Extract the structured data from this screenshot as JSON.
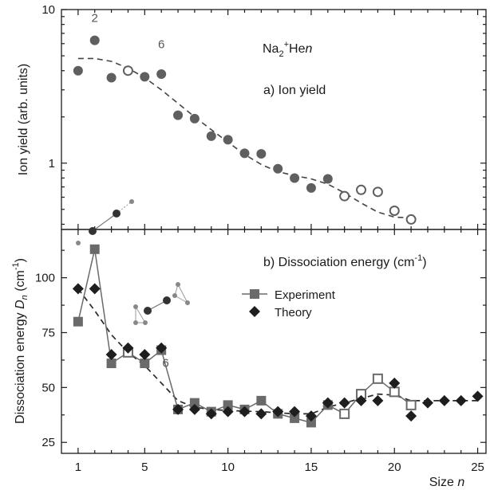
{
  "colors": {
    "filled_marker": "#5f5f5f",
    "experiment": "#6a6a6a",
    "theory": "#1e1e1e",
    "fit": "#444444",
    "axis": "#1a1a1a"
  },
  "chart_data": [
    {
      "panel": "top",
      "type": "scatter",
      "title": "a) Ion yield",
      "species": {
        "base": "Na",
        "sub1": "2",
        "sup": "+",
        "mid": "He",
        "sub2": "n"
      },
      "ylabel": "Ion yield (arb. units)",
      "yscale": "log",
      "ylim": [
        0.37,
        10
      ],
      "yticks": [
        {
          "value": 1,
          "label": "1"
        },
        {
          "value": 10,
          "label": "10"
        }
      ],
      "annotations": [
        {
          "text": "2",
          "x": 2,
          "y": 8.3
        },
        {
          "text": "6",
          "x": 6,
          "y": 5.6
        }
      ],
      "series": [
        {
          "marker": "filled-circle",
          "points": [
            {
              "x": 1,
              "y": 4.0
            },
            {
              "x": 2,
              "y": 6.3
            },
            {
              "x": 3,
              "y": 3.6
            },
            {
              "x": 5,
              "y": 3.65
            },
            {
              "x": 6,
              "y": 3.8
            },
            {
              "x": 7,
              "y": 2.05
            },
            {
              "x": 8,
              "y": 1.95
            },
            {
              "x": 9,
              "y": 1.5
            },
            {
              "x": 10,
              "y": 1.42
            },
            {
              "x": 11,
              "y": 1.16
            },
            {
              "x": 12,
              "y": 1.15
            },
            {
              "x": 13,
              "y": 0.92
            },
            {
              "x": 14,
              "y": 0.8
            },
            {
              "x": 15,
              "y": 0.69
            },
            {
              "x": 16,
              "y": 0.79
            }
          ]
        },
        {
          "marker": "open-circle",
          "points": [
            {
              "x": 4,
              "y": 4.0
            },
            {
              "x": 17,
              "y": 0.61
            },
            {
              "x": 18,
              "y": 0.67
            },
            {
              "x": 19,
              "y": 0.65
            },
            {
              "x": 20,
              "y": 0.49
            },
            {
              "x": 21,
              "y": 0.43
            }
          ]
        },
        {
          "marker": "dashed-line",
          "points": [
            {
              "x": 1,
              "y": 4.8
            },
            {
              "x": 2,
              "y": 4.8
            },
            {
              "x": 3,
              "y": 4.6
            },
            {
              "x": 4,
              "y": 4.15
            },
            {
              "x": 5,
              "y": 3.6
            },
            {
              "x": 6,
              "y": 3.0
            },
            {
              "x": 7,
              "y": 2.45
            },
            {
              "x": 8,
              "y": 2.0
            },
            {
              "x": 9,
              "y": 1.65
            },
            {
              "x": 10,
              "y": 1.37
            },
            {
              "x": 11,
              "y": 1.14
            },
            {
              "x": 12,
              "y": 0.98
            },
            {
              "x": 13,
              "y": 0.88
            },
            {
              "x": 14,
              "y": 0.83
            },
            {
              "x": 15,
              "y": 0.79
            },
            {
              "x": 16,
              "y": 0.73
            },
            {
              "x": 17,
              "y": 0.64
            },
            {
              "x": 18,
              "y": 0.55
            },
            {
              "x": 19,
              "y": 0.48
            },
            {
              "x": 20,
              "y": 0.445
            },
            {
              "x": 21,
              "y": 0.44
            }
          ]
        }
      ]
    },
    {
      "panel": "bottom",
      "type": "line",
      "title": "b) Dissociation energy (cm",
      "title_sup": "-1",
      "title_end": ")",
      "ylabel": {
        "text": "Dissociation energy ",
        "italic": "D",
        "sub": "n",
        "unit": " (cm",
        "sup": "-1",
        "end": ")"
      },
      "xlabel": {
        "text": "Size ",
        "italic": "n"
      },
      "xlim": [
        0,
        25.5
      ],
      "ylim": [
        20,
        122
      ],
      "xticks": [
        {
          "value": 1,
          "label": "1"
        },
        {
          "value": 5,
          "label": "5"
        },
        {
          "value": 10,
          "label": "10"
        },
        {
          "value": 15,
          "label": "15"
        },
        {
          "value": 20,
          "label": "20"
        },
        {
          "value": 25,
          "label": "25"
        }
      ],
      "yticks": [
        {
          "value": 25,
          "label": "25"
        },
        {
          "value": 50,
          "label": "50"
        },
        {
          "value": 75,
          "label": "75"
        },
        {
          "value": 100,
          "label": "100"
        }
      ],
      "annotations": [
        {
          "text": "6",
          "x": 5.2,
          "y": 63
        }
      ],
      "series": [
        {
          "name": "Experiment",
          "marker": "square",
          "points": [
            {
              "x": 1,
              "y": 80,
              "open": false
            },
            {
              "x": 2,
              "y": 113,
              "open": false
            },
            {
              "x": 3,
              "y": 61,
              "open": false
            },
            {
              "x": 4,
              "y": 66,
              "open": true
            },
            {
              "x": 5,
              "y": 61,
              "open": false
            },
            {
              "x": 6,
              "y": 67,
              "open": false
            },
            {
              "x": 7,
              "y": 40,
              "open": false
            },
            {
              "x": 8,
              "y": 43,
              "open": false
            },
            {
              "x": 9,
              "y": 39,
              "open": false
            },
            {
              "x": 10,
              "y": 42,
              "open": false
            },
            {
              "x": 11,
              "y": 40,
              "open": false
            },
            {
              "x": 12,
              "y": 44,
              "open": false
            },
            {
              "x": 13,
              "y": 38,
              "open": false
            },
            {
              "x": 14,
              "y": 36,
              "open": false
            },
            {
              "x": 15,
              "y": 34,
              "open": false
            },
            {
              "x": 16,
              "y": 42,
              "open": false
            },
            {
              "x": 17,
              "y": 38,
              "open": true
            },
            {
              "x": 18,
              "y": 47,
              "open": true
            },
            {
              "x": 19,
              "y": 54,
              "open": true
            },
            {
              "x": 20,
              "y": 48,
              "open": true
            },
            {
              "x": 21,
              "y": 42,
              "open": true
            }
          ]
        },
        {
          "name": "Theory",
          "marker": "diamond",
          "points": [
            {
              "x": 1,
              "y": 95
            },
            {
              "x": 2,
              "y": 95
            },
            {
              "x": 3,
              "y": 65
            },
            {
              "x": 4,
              "y": 68
            },
            {
              "x": 5,
              "y": 65
            },
            {
              "x": 6,
              "y": 68
            },
            {
              "x": 7,
              "y": 40
            },
            {
              "x": 8,
              "y": 40
            },
            {
              "x": 9,
              "y": 38
            },
            {
              "x": 10,
              "y": 39
            },
            {
              "x": 11,
              "y": 39
            },
            {
              "x": 12,
              "y": 38
            },
            {
              "x": 13,
              "y": 39
            },
            {
              "x": 14,
              "y": 39
            },
            {
              "x": 15,
              "y": 37
            },
            {
              "x": 16,
              "y": 43
            },
            {
              "x": 17,
              "y": 43
            },
            {
              "x": 18,
              "y": 44
            },
            {
              "x": 19,
              "y": 44
            },
            {
              "x": 20,
              "y": 52
            },
            {
              "x": 21,
              "y": 37
            },
            {
              "x": 22,
              "y": 43
            },
            {
              "x": 23,
              "y": 44
            },
            {
              "x": 24,
              "y": 44
            },
            {
              "x": 25,
              "y": 46
            }
          ]
        },
        {
          "marker": "dashed-line",
          "points": [
            {
              "x": 1,
              "y": 95
            },
            {
              "x": 2,
              "y": 85
            },
            {
              "x": 3,
              "y": 74
            },
            {
              "x": 4,
              "y": 66
            },
            {
              "x": 5,
              "y": 60
            },
            {
              "x": 6,
              "y": 52
            },
            {
              "x": 7,
              "y": 44
            },
            {
              "x": 8,
              "y": 41
            },
            {
              "x": 9,
              "y": 40
            },
            {
              "x": 10,
              "y": 39.5
            },
            {
              "x": 12,
              "y": 39
            },
            {
              "x": 14,
              "y": 38
            },
            {
              "x": 15,
              "y": 38
            },
            {
              "x": 16,
              "y": 41
            },
            {
              "x": 17,
              "y": 43
            },
            {
              "x": 18,
              "y": 45
            },
            {
              "x": 19,
              "y": 47
            },
            {
              "x": 20,
              "y": 46.5
            },
            {
              "x": 21,
              "y": 44
            },
            {
              "x": 22,
              "y": 44
            },
            {
              "x": 25,
              "y": 44
            }
          ]
        }
      ]
    }
  ]
}
